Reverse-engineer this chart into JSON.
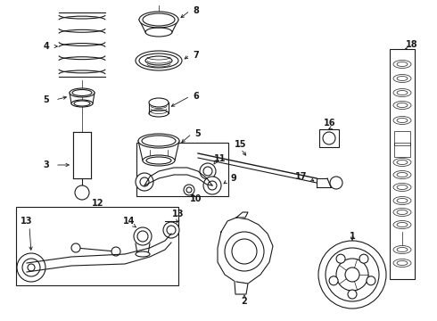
{
  "background_color": "#ffffff",
  "line_color": "#1a1a1a",
  "fig_width": 4.9,
  "fig_height": 3.6,
  "dpi": 100,
  "lw_thin": 0.5,
  "lw_med": 0.8,
  "lw_thick": 1.0,
  "label_fontsize": 7.0
}
